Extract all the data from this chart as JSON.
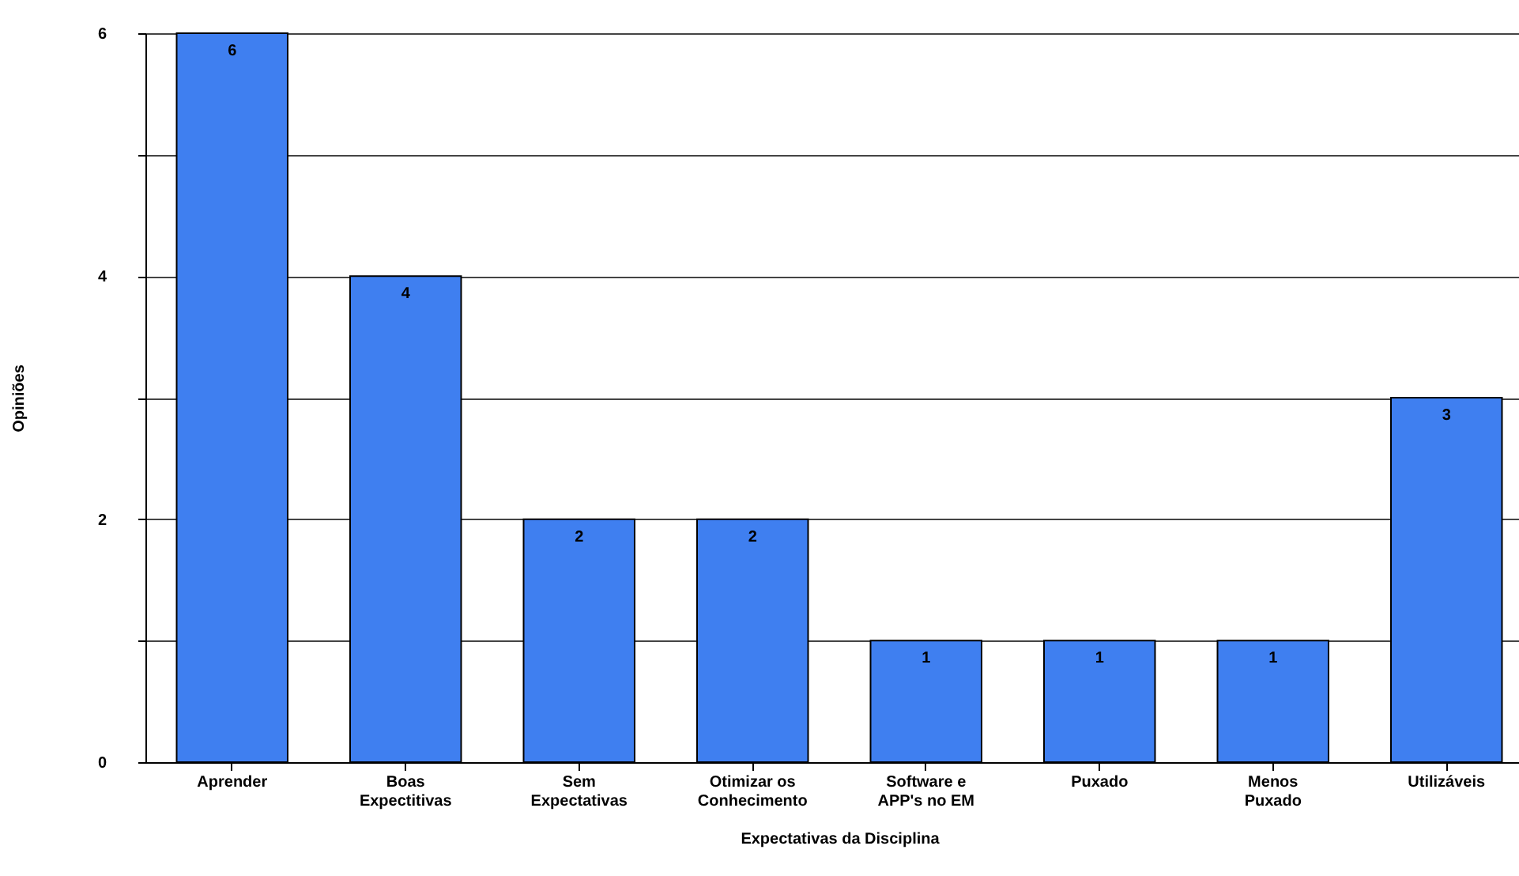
{
  "chart_data": {
    "type": "bar",
    "xlabel": "Expectativas da Disciplina",
    "ylabel": "Opiniões",
    "categories": [
      "Aprender",
      "Boas\nExpectitivas",
      "Sem\nExpectativas",
      "Otimizar os\nConhecimento",
      "Software  e\nAPP's no EM",
      "Puxado",
      "Menos\nPuxado",
      "Utilizáveis"
    ],
    "values": [
      6,
      4,
      2,
      2,
      1,
      1,
      1,
      3
    ],
    "color": "#3f7ff0",
    "ylim": [
      0,
      6
    ],
    "yticks": [
      0,
      {
        "value": 1,
        "label": null
      },
      2,
      {
        "value": 3,
        "label": null
      },
      4,
      {
        "value": 5,
        "label": null
      },
      6
    ],
    "grid": true,
    "data_labels": true
  }
}
